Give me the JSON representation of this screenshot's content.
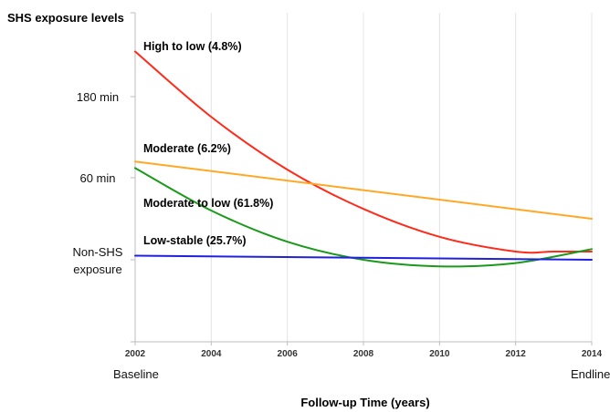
{
  "chart_data": {
    "type": "line",
    "title": "",
    "ylabel": "SHS exposure levels",
    "xlabel": "Follow-up Time (years)",
    "x": [
      2002,
      2004,
      2006,
      2008,
      2010,
      2012,
      2014
    ],
    "x_tick_labels": [
      "2002",
      "2004",
      "2006",
      "2008",
      "2010",
      "2012",
      "2014"
    ],
    "x_sublabels": [
      "Baseline",
      "Endline"
    ],
    "y_tick_labels": [
      "180 min",
      "60 min",
      "Non-SHS exposure"
    ],
    "y_tick_label_lines": [
      [
        "180 min"
      ],
      [
        "60 min"
      ],
      [
        "Non-SHS",
        "exposure"
      ]
    ],
    "grid": "vertical",
    "series": [
      {
        "name": "High to low (4.8%)",
        "color": "#ff2a1a",
        "x": [
          2002,
          2004,
          2006,
          2008,
          2010,
          2012,
          2013,
          2014
        ],
        "level": [
          3.55,
          2.75,
          2.1,
          1.62,
          1.28,
          1.1,
          1.1,
          1.1
        ]
      },
      {
        "name": "Moderate (6.2%)",
        "color": "#ffa824",
        "x": [
          2002,
          2014
        ],
        "level": [
          2.2,
          1.5
        ]
      },
      {
        "name": "Moderate to low (61.8%)",
        "color": "#1a9a1a",
        "x": [
          2002,
          2004,
          2006,
          2008,
          2010,
          2012,
          2014
        ],
        "level": [
          2.12,
          1.6,
          1.22,
          1.0,
          0.92,
          0.96,
          1.13
        ]
      },
      {
        "name": "Low-stable (25.7%)",
        "color": "#2020e0",
        "x": [
          2002,
          2014
        ],
        "level": [
          1.05,
          1.0
        ]
      }
    ]
  }
}
